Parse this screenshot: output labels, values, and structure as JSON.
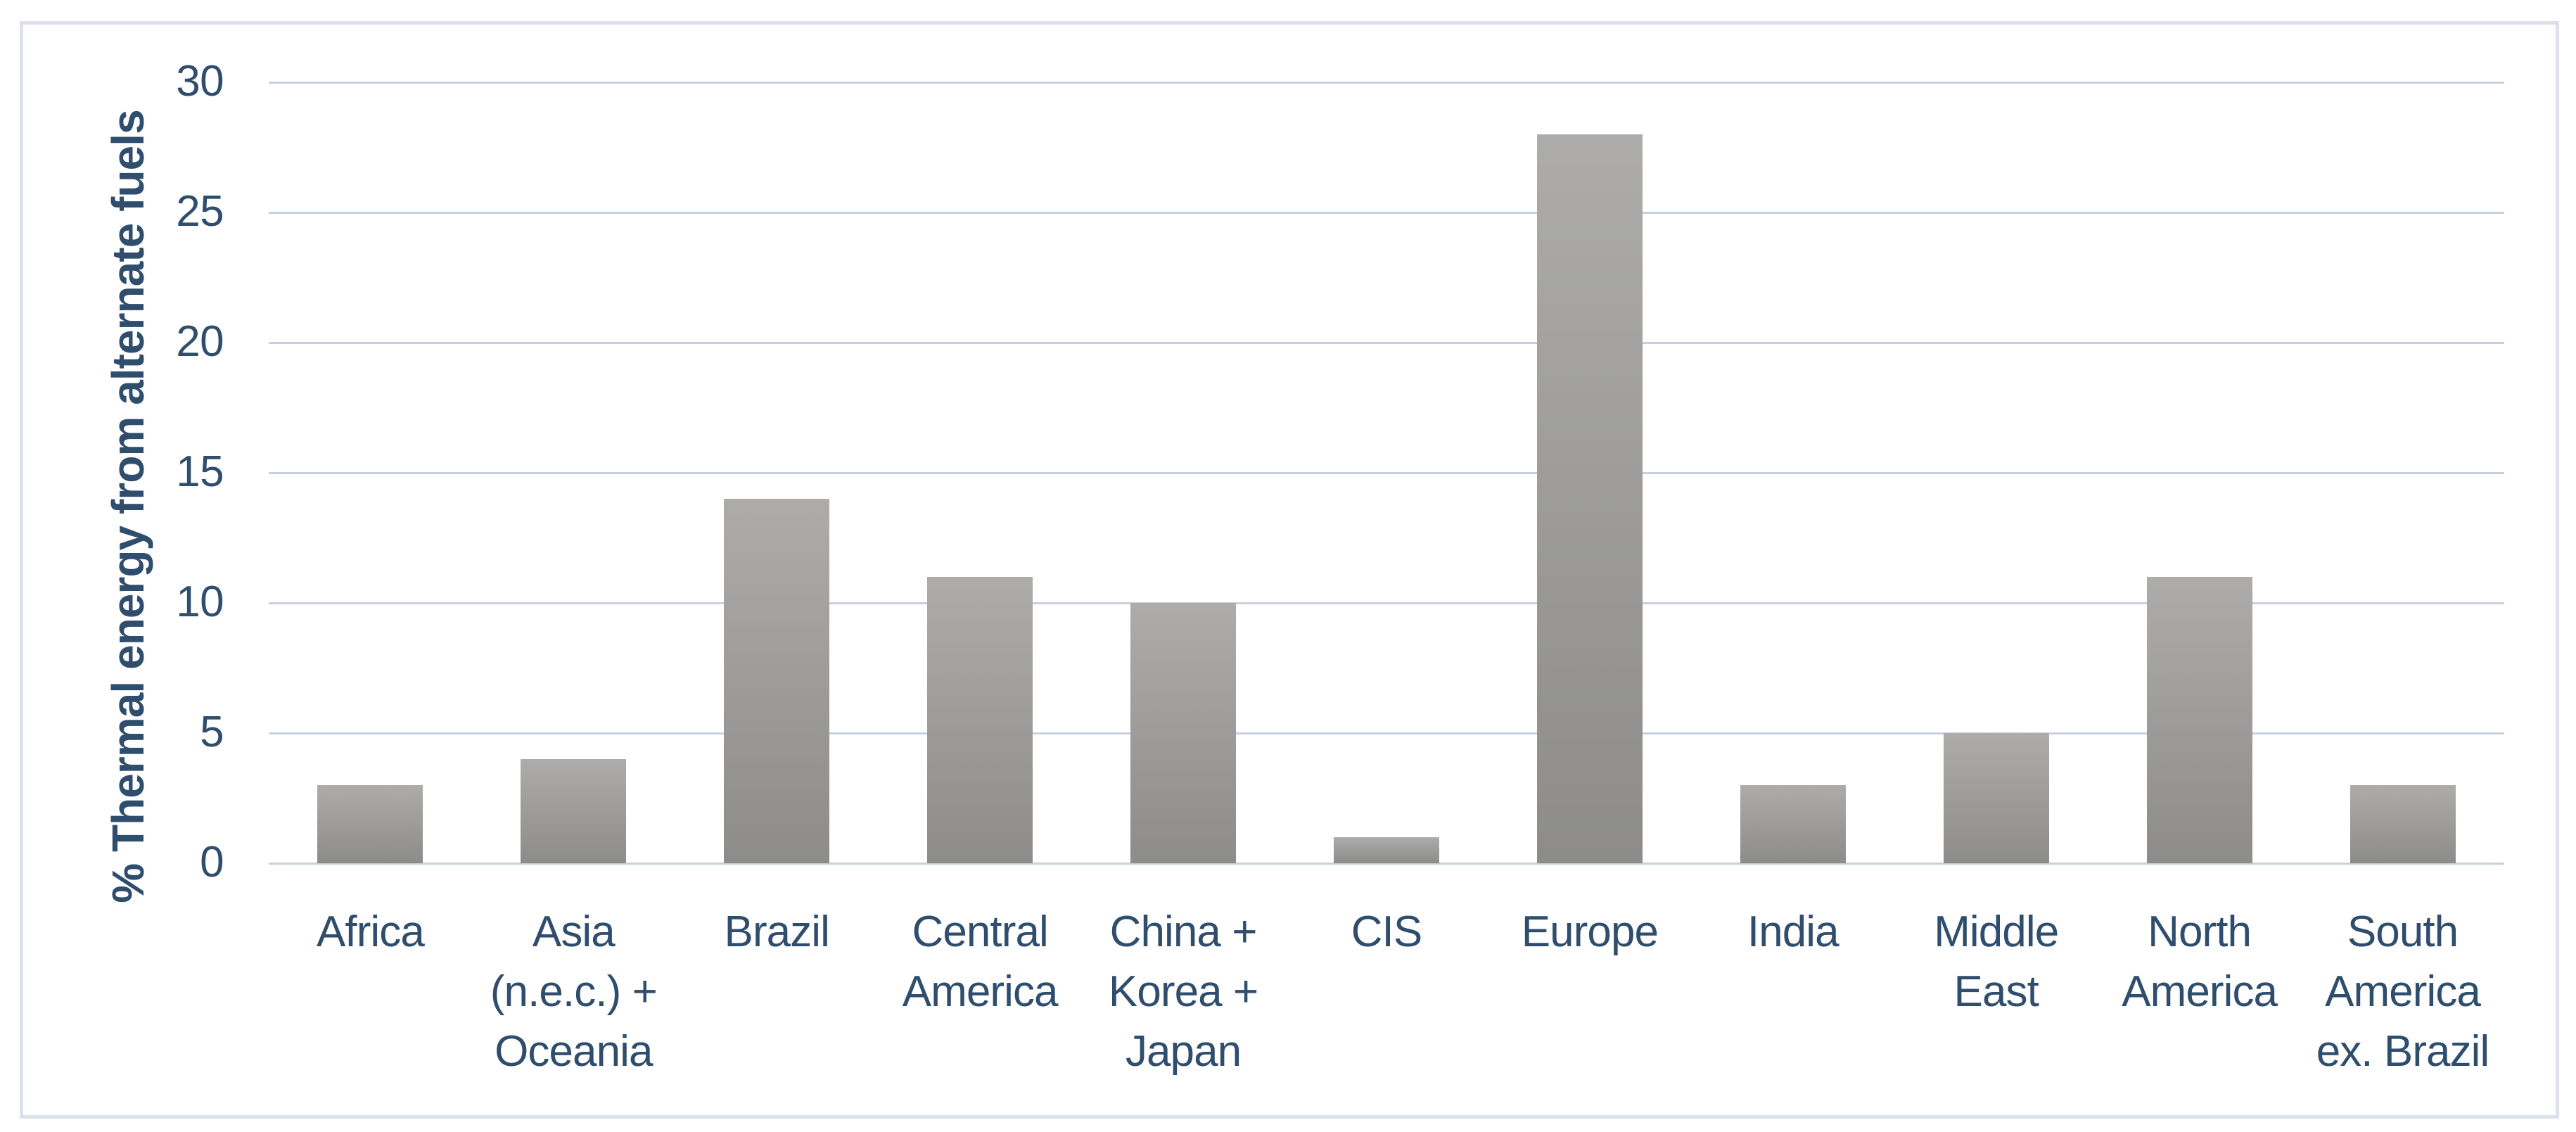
{
  "chart_data": {
    "type": "bar",
    "title": "",
    "xlabel": "",
    "ylabel": "% Thermal energy from alternate fuels",
    "ylim": [
      0,
      30
    ],
    "yticks": [
      0,
      5,
      10,
      15,
      20,
      25,
      30
    ],
    "grid": true,
    "legend_position": "none",
    "categories": [
      "Africa",
      "Asia (n.e.c.) + Oceania",
      "Brazil",
      "Central America",
      "China + Korea + Japan",
      "CIS",
      "Europe",
      "India",
      "Middle East",
      "North America",
      "South America ex. Brazil"
    ],
    "category_label_lines": [
      [
        "Africa"
      ],
      [
        "Asia",
        "(n.e.c.) +",
        "Oceania"
      ],
      [
        "Brazil"
      ],
      [
        "Central",
        "America"
      ],
      [
        "China +",
        "Korea +",
        "Japan"
      ],
      [
        "CIS"
      ],
      [
        "Europe"
      ],
      [
        "India"
      ],
      [
        "Middle",
        "East"
      ],
      [
        "North",
        "America"
      ],
      [
        "South",
        "America",
        "ex. Brazil"
      ]
    ],
    "values": [
      3,
      4,
      14,
      11,
      10,
      1,
      28,
      3,
      5,
      11,
      3
    ],
    "colors": {
      "bar_gradient_top": "#adacaa",
      "bar_gradient_bottom": "#8d8c8a",
      "gridline": "#c8d0df",
      "text": "#2f4d6d",
      "frame_border": "#dde2ea",
      "background": "#ffffff"
    }
  }
}
